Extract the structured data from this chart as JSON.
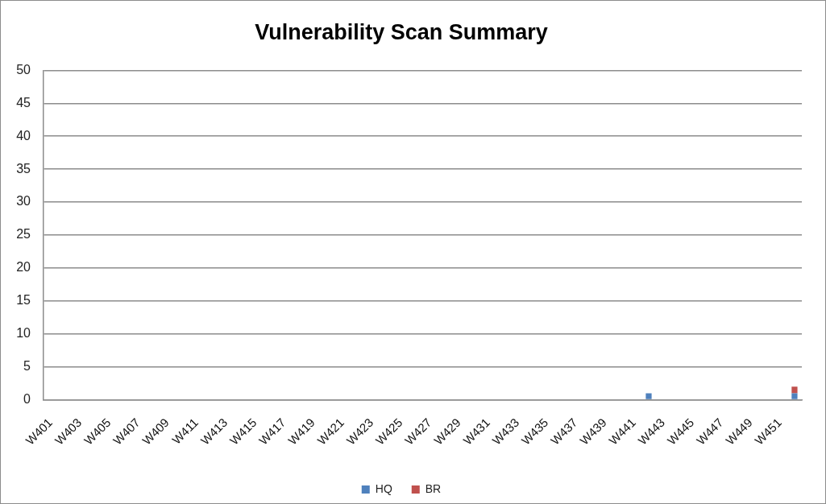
{
  "chart_data": {
    "type": "bar",
    "title": "Vulnerability Scan Summary",
    "categories": [
      "W401",
      null,
      "W403",
      null,
      "W405",
      null,
      "W407",
      null,
      "W409",
      null,
      "W411",
      null,
      "W413",
      null,
      "W415",
      null,
      "W417",
      null,
      "W419",
      null,
      "W421",
      null,
      "W423",
      null,
      "W425",
      null,
      "W427",
      null,
      "W429",
      null,
      "W431",
      null,
      "W433",
      null,
      "W435",
      null,
      "W437",
      null,
      "W439",
      null,
      "W441",
      null,
      "W443",
      null,
      "W445",
      null,
      "W447",
      null,
      "W449",
      null,
      "W451",
      null
    ],
    "series": [
      {
        "name": "HQ",
        "color": "#4f81bd",
        "values": [
          0,
          0,
          0,
          0,
          0,
          0,
          0,
          0,
          0,
          0,
          0,
          0,
          0,
          0,
          0,
          0,
          0,
          0,
          0,
          0,
          0,
          0,
          0,
          0,
          0,
          0,
          0,
          0,
          0,
          0,
          0,
          0,
          0,
          0,
          0,
          0,
          0,
          0,
          0,
          0,
          0,
          1,
          0,
          0,
          0,
          0,
          0,
          0,
          0,
          0,
          0,
          1
        ]
      },
      {
        "name": "BR",
        "color": "#c0504d",
        "values": [
          0,
          0,
          0,
          0,
          0,
          0,
          0,
          0,
          0,
          0,
          0,
          0,
          0,
          0,
          0,
          0,
          0,
          0,
          0,
          0,
          0,
          0,
          0,
          0,
          0,
          0,
          0,
          0,
          0,
          0,
          0,
          0,
          0,
          0,
          0,
          0,
          0,
          0,
          0,
          0,
          0,
          0,
          0,
          0,
          0,
          0,
          0,
          0,
          0,
          0,
          0,
          1
        ]
      }
    ],
    "stacked": true,
    "ylim": [
      0,
      50
    ],
    "yticks": [
      0,
      5,
      10,
      15,
      20,
      25,
      30,
      35,
      40,
      45,
      50
    ],
    "grid": "y",
    "legend": "bottom"
  }
}
